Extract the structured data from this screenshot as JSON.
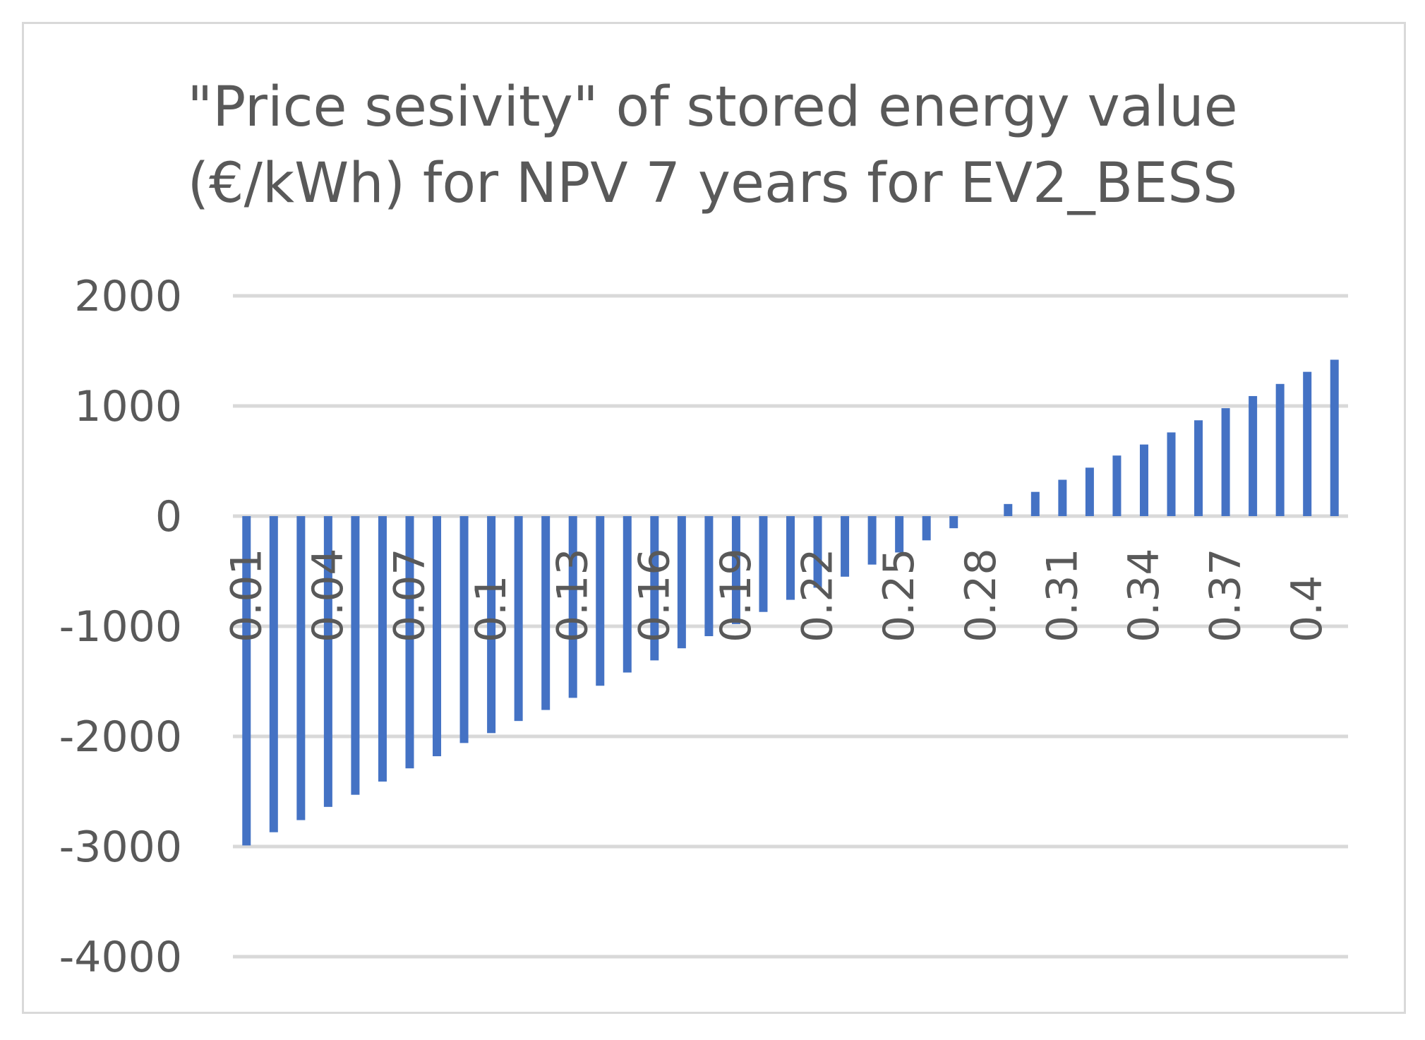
{
  "chart_data": {
    "type": "bar",
    "title_lines": [
      "\"Price sesivity\" of stored energy value",
      "(€/kWh) for NPV 7 years for EV2_BESS"
    ],
    "xlabel": "",
    "ylabel": "",
    "ylim": [
      -4000,
      2000
    ],
    "yticks": [
      "2000",
      "1000",
      "0",
      "-1000",
      "-2000",
      "-3000",
      "-4000"
    ],
    "ytick_values": [
      2000,
      1000,
      0,
      -1000,
      -2000,
      -3000,
      -4000
    ],
    "grid": true,
    "legend": "none",
    "bar_color": "#4472c4",
    "grid_color": "#d9d9d9",
    "text_color": "#595959",
    "categories": [
      "0.01",
      "0.02",
      "0.03",
      "0.04",
      "0.05",
      "0.06",
      "0.07",
      "0.08",
      "0.09",
      "0.1",
      "0.11",
      "0.12",
      "0.13",
      "0.14",
      "0.15",
      "0.16",
      "0.17",
      "0.18",
      "0.19",
      "0.2",
      "0.21",
      "0.22",
      "0.23",
      "0.24",
      "0.25",
      "0.26",
      "0.27",
      "0.28",
      "0.29",
      "0.3",
      "0.31",
      "0.32",
      "0.33",
      "0.34",
      "0.35",
      "0.36",
      "0.37",
      "0.38",
      "0.39",
      "0.4",
      "0.41"
    ],
    "visible_tick_labels": [
      "0.01",
      "0.04",
      "0.07",
      "0.1",
      "0.13",
      "0.16",
      "0.19",
      "0.22",
      "0.25",
      "0.28",
      "0.31",
      "0.34",
      "0.37",
      "0.4"
    ],
    "values": [
      -2990,
      -2870,
      -2760,
      -2640,
      -2530,
      -2410,
      -2290,
      -2180,
      -2060,
      -1970,
      -1860,
      -1760,
      -1650,
      -1540,
      -1420,
      -1310,
      -1200,
      -1090,
      -980,
      -870,
      -760,
      -650,
      -550,
      -440,
      -330,
      -220,
      -110,
      0,
      110,
      220,
      330,
      440,
      550,
      650,
      760,
      870,
      980,
      1090,
      1200,
      1310,
      1420
    ]
  }
}
